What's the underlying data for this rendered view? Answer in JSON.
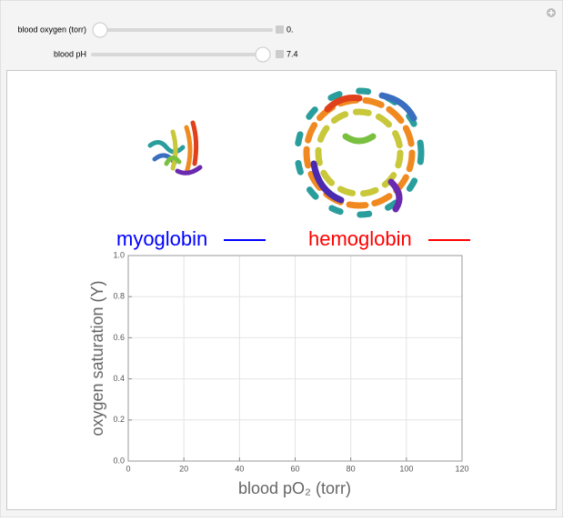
{
  "controls": [
    {
      "label": "blood oxygen (torr)",
      "value": "0."
    },
    {
      "label": "blood pH",
      "value": "7.4"
    }
  ],
  "chart_data": {
    "type": "line",
    "x": [],
    "series": [
      {
        "name": "myoglobin",
        "color": "#0000ff",
        "values": []
      },
      {
        "name": "hemoglobin",
        "color": "#ff0000",
        "values": []
      }
    ],
    "x_label": "blood pO₂ (torr)",
    "y_label": "oxygen saturation (Y)",
    "xlim": [
      0,
      120
    ],
    "xticks": [
      0,
      20,
      40,
      60,
      80,
      100,
      120
    ],
    "ylim": [
      0,
      1
    ],
    "yticks": [
      {
        "value": 0,
        "label": "0.0"
      },
      0.2,
      0.4,
      0.6,
      0.8,
      {
        "value": 1,
        "label": "1.0"
      }
    ],
    "grid": true
  }
}
